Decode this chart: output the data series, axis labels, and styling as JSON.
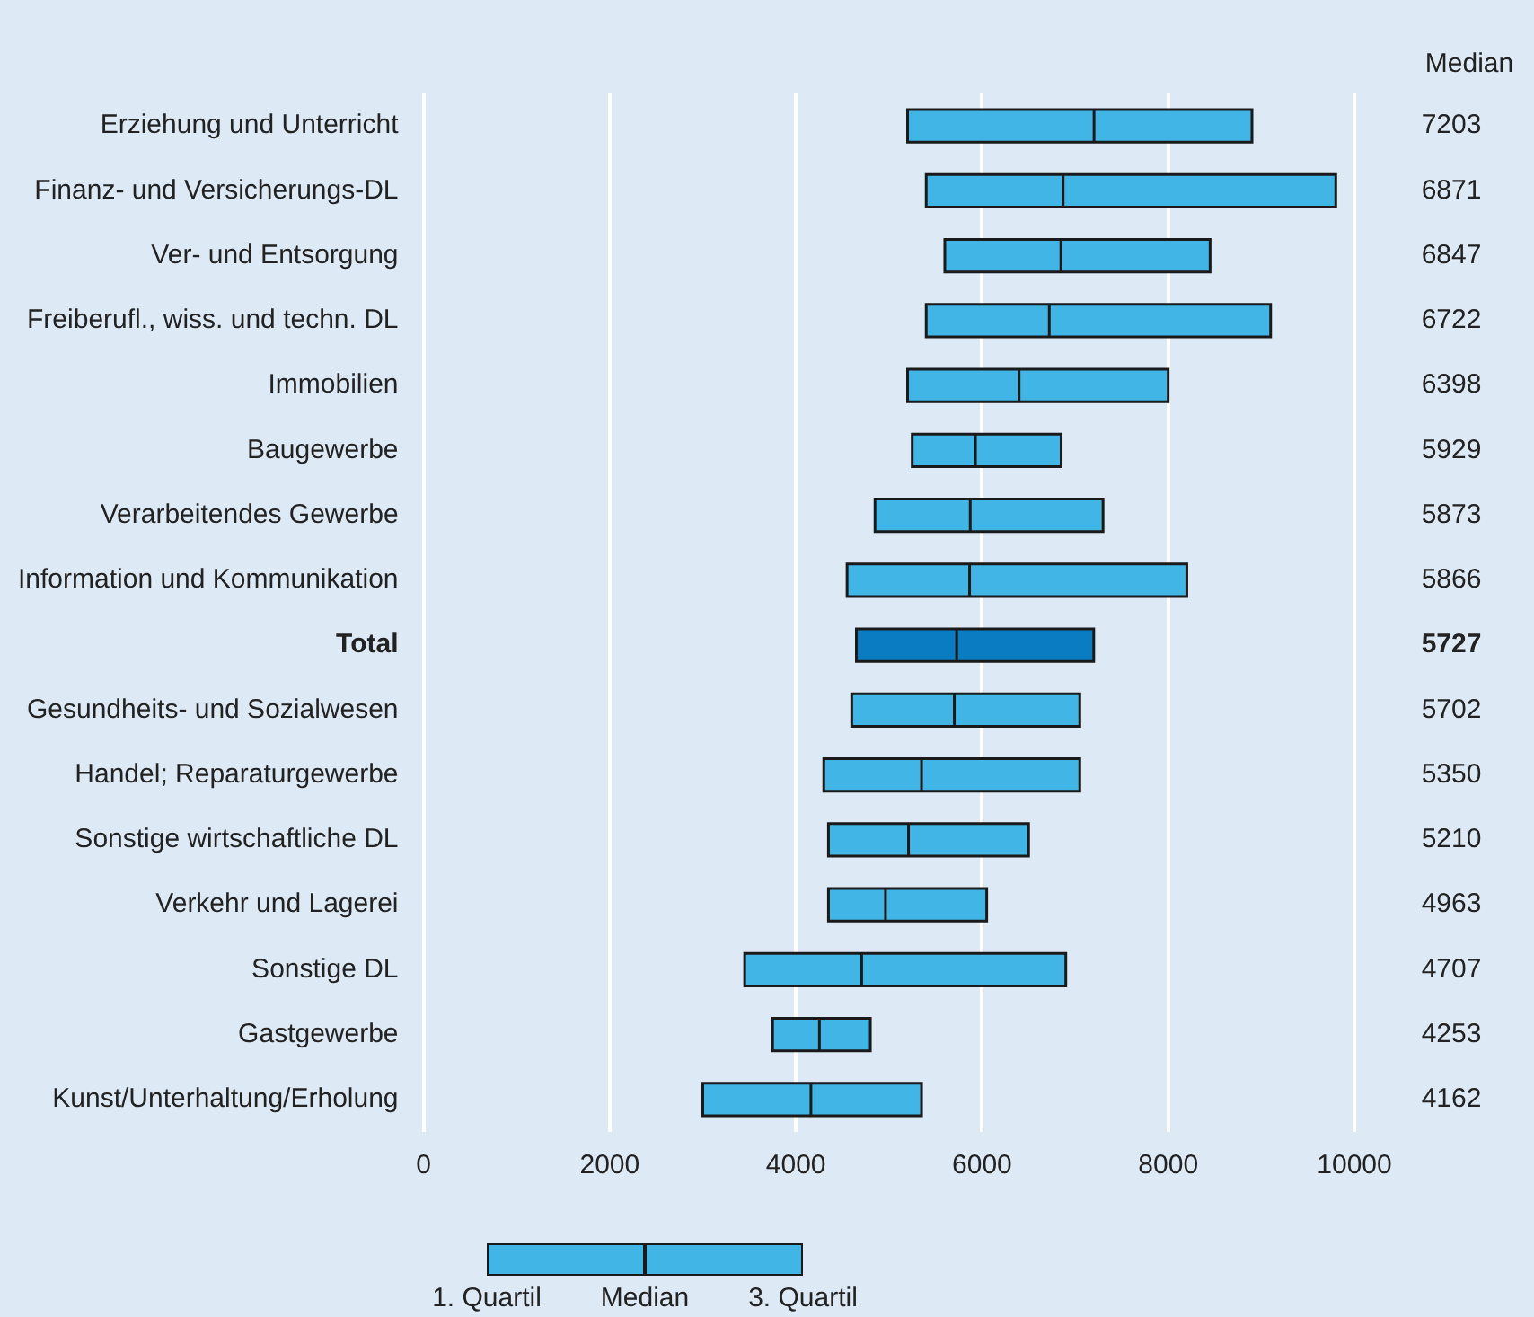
{
  "chart_data": {
    "type": "box",
    "orientation": "horizontal",
    "categories": [
      "Erziehung und Unterricht",
      "Finanz- und Versicherungs-DL",
      "Ver- und Entsorgung",
      "Freiberufl., wiss. und techn. DL",
      "Immobilien",
      "Baugewerbe",
      "Verarbeitendes Gewerbe",
      "Information und Kommunikation",
      "Total",
      "Gesundheits- und Sozialwesen",
      "Handel; Reparaturgewerbe",
      "Sonstige wirtschaftliche DL",
      "Verkehr und Lagerei",
      "Sonstige DL",
      "Gastgewerbe",
      "Kunst/Unterhaltung/Erholung"
    ],
    "color": "#41b6e6",
    "colors": [
      "#41b6e6",
      "#41b6e6",
      "#41b6e6",
      "#41b6e6",
      "#41b6e6",
      "#41b6e6",
      "#41b6e6",
      "#41b6e6",
      "#0a7cc1",
      "#41b6e6",
      "#41b6e6",
      "#41b6e6",
      "#41b6e6",
      "#41b6e6",
      "#41b6e6",
      "#41b6e6"
    ],
    "boxes": [
      {
        "low": 5200,
        "q1": 5200,
        "median": 7203,
        "q3": 8900,
        "high": 8900
      },
      {
        "low": 5400,
        "q1": 5400,
        "median": 6871,
        "q3": 9800,
        "high": 9800
      },
      {
        "low": 5600,
        "q1": 5600,
        "median": 6847,
        "q3": 8450,
        "high": 8450
      },
      {
        "low": 5400,
        "q1": 5400,
        "median": 6722,
        "q3": 9100,
        "high": 9100
      },
      {
        "low": 5200,
        "q1": 5200,
        "median": 6398,
        "q3": 8000,
        "high": 8000
      },
      {
        "low": 5250,
        "q1": 5250,
        "median": 5929,
        "q3": 6850,
        "high": 6850
      },
      {
        "low": 4850,
        "q1": 4850,
        "median": 5873,
        "q3": 7300,
        "high": 7300
      },
      {
        "low": 4550,
        "q1": 4550,
        "median": 5866,
        "q3": 8200,
        "high": 8200
      },
      {
        "low": 4650,
        "q1": 4650,
        "median": 5727,
        "q3": 7200,
        "high": 7200
      },
      {
        "low": 4600,
        "q1": 4600,
        "median": 5702,
        "q3": 7050,
        "high": 7050
      },
      {
        "low": 4300,
        "q1": 4300,
        "median": 5350,
        "q3": 7050,
        "high": 7050
      },
      {
        "low": 4350,
        "q1": 4350,
        "median": 5210,
        "q3": 6500,
        "high": 6500
      },
      {
        "low": 4350,
        "q1": 4350,
        "median": 4963,
        "q3": 6050,
        "high": 6050
      },
      {
        "low": 3450,
        "q1": 3450,
        "median": 4707,
        "q3": 6900,
        "high": 6900
      },
      {
        "low": 3750,
        "q1": 3750,
        "median": 4253,
        "q3": 4800,
        "high": 4800
      },
      {
        "low": 3000,
        "q1": 3000,
        "median": 4162,
        "q3": 5350,
        "high": 5350
      }
    ],
    "value_labels": [
      "7203",
      "6871",
      "6847",
      "6722",
      "6398",
      "5929",
      "5873",
      "5866",
      "5727",
      "5702",
      "5350",
      "5210",
      "4963",
      "4707",
      "4253",
      "4162"
    ],
    "xlim": [
      0,
      10000
    ],
    "xticks": [
      0,
      2000,
      4000,
      6000,
      8000,
      10000
    ],
    "grid": "x",
    "legend": false,
    "annotations": [
      "Median",
      "1. Quartil",
      "Median",
      "3. Quartil"
    ]
  }
}
